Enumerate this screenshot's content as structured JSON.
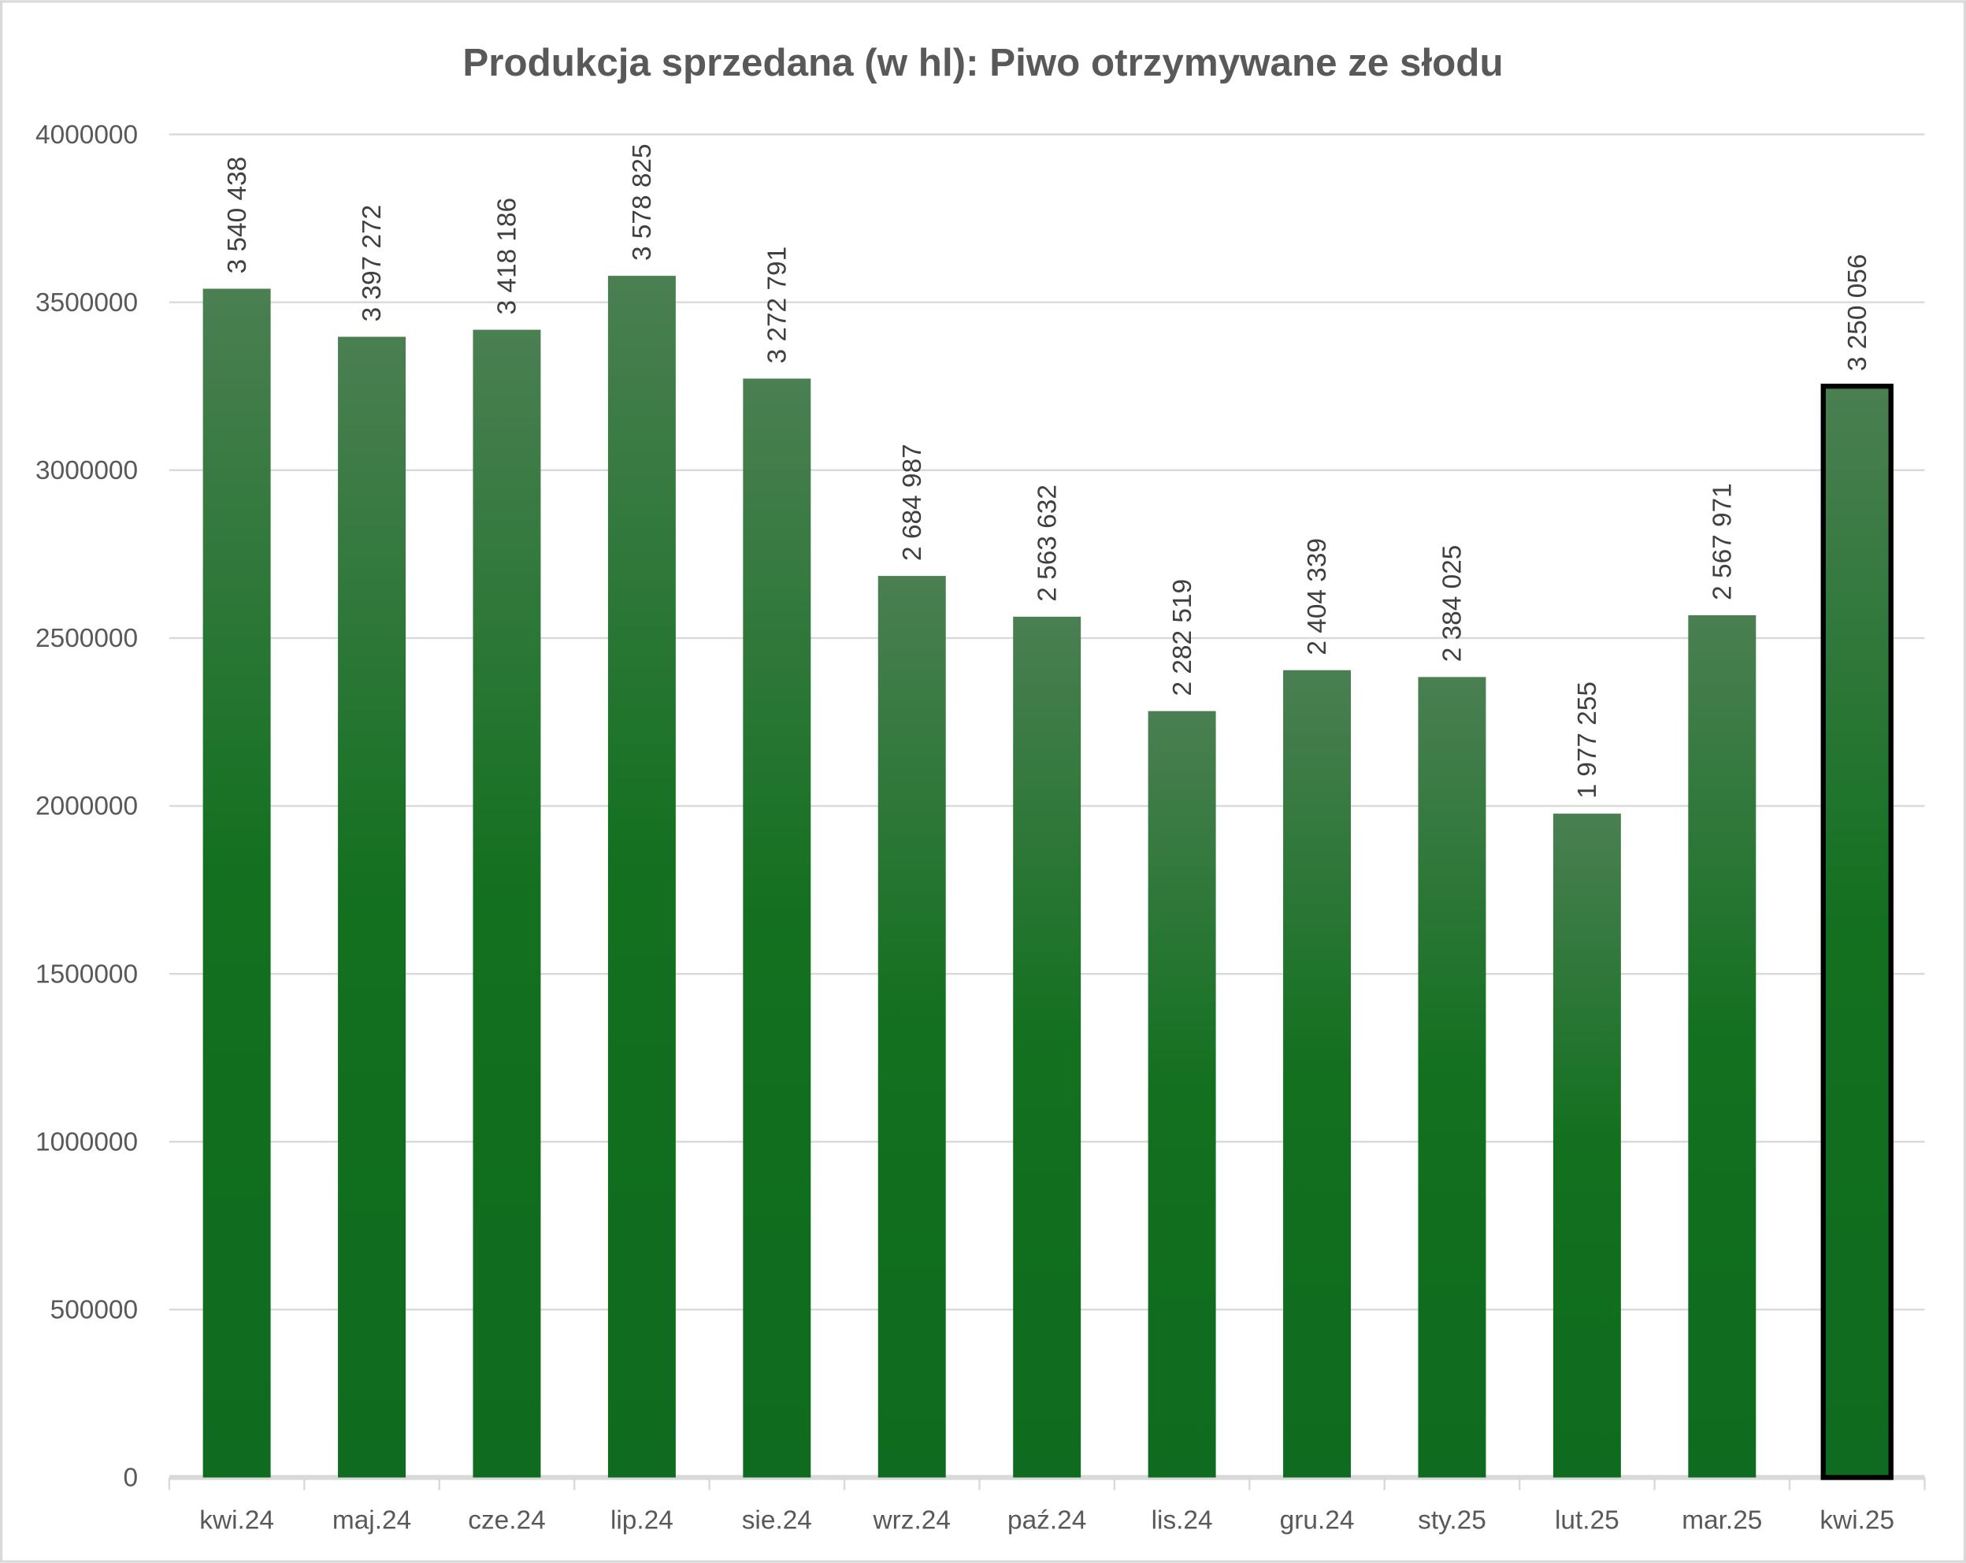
{
  "chart_data": {
    "type": "bar",
    "title": "Produkcja sprzedana (w hl): Piwo otrzymywane ze słodu",
    "xlabel": "",
    "ylabel": "",
    "ylim": [
      0,
      4000000
    ],
    "yticks": [
      0,
      500000,
      1000000,
      1500000,
      2000000,
      2500000,
      3000000,
      3500000,
      4000000
    ],
    "ytick_labels": [
      "0",
      "500000",
      "1000000",
      "1500000",
      "2000000",
      "2500000",
      "3000000",
      "3500000",
      "4000000"
    ],
    "grid": true,
    "categories": [
      "kwi.24",
      "maj.24",
      "cze.24",
      "lip.24",
      "sie.24",
      "wrz.24",
      "paź.24",
      "lis.24",
      "gru.24",
      "sty.25",
      "lut.25",
      "mar.25",
      "kwi.25"
    ],
    "values": [
      3540438,
      3397272,
      3418186,
      3578825,
      3272791,
      2684987,
      2563632,
      2282519,
      2404339,
      2384025,
      1977255,
      2567971,
      3250056
    ],
    "data_labels": [
      "3 540 438",
      "3 397 272",
      "3 418 186",
      "3 578 825",
      "3 272 791",
      "2 684 987",
      "2 563 632",
      "2 282 519",
      "2 404 339",
      "2 384 025",
      "1 977 255",
      "2 567 971",
      "3 250 056"
    ],
    "highlighted_index": 12,
    "colors": {
      "bar_top": "#4a7f52",
      "bar_bottom": "#0f6b1f",
      "highlight_border": "#000000",
      "grid": "#d9d9d9",
      "text": "#595959"
    }
  }
}
